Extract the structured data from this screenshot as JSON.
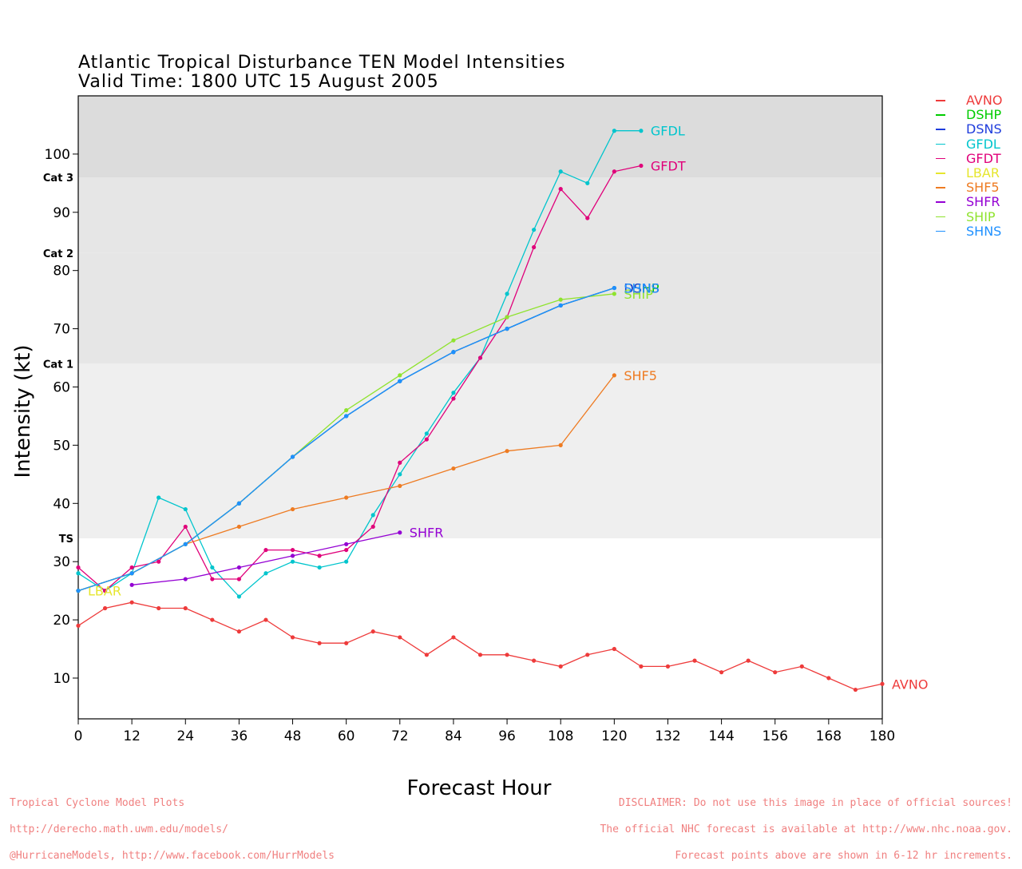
{
  "header": {
    "title_line1": "Atlantic Tropical Disturbance TEN Model Intensities",
    "title_line2": "Valid Time: 1800 UTC 15 August 2005"
  },
  "footer": {
    "left_line1": "Tropical Cyclone Model Plots",
    "left_line2": "http://derecho.math.uwm.edu/models/",
    "left_line3": "@HurricaneModels, http://www.facebook.com/HurrModels",
    "right_line1": "DISCLAIMER: Do not use this image in place of official sources!",
    "right_line2": "The official NHC forecast is available at http://www.nhc.noaa.gov.",
    "right_line3": "Forecast points above are shown in 6-12 hr increments."
  },
  "chart_data": {
    "type": "line",
    "title": "Atlantic Tropical Disturbance TEN Model Intensities",
    "subtitle": "Valid Time: 1800 UTC 15 August 2005",
    "xlabel": "Forecast Hour",
    "ylabel": "Intensity (kt)",
    "xlim": [
      0,
      180
    ],
    "ylim": [
      3,
      110
    ],
    "xticks": [
      0,
      12,
      24,
      36,
      48,
      60,
      72,
      84,
      96,
      108,
      120,
      132,
      144,
      156,
      168,
      180
    ],
    "yticks": [
      10,
      20,
      30,
      40,
      50,
      60,
      70,
      80,
      90,
      100
    ],
    "legend_position": "right",
    "bands": [
      {
        "from": 34,
        "to": 64,
        "label": "TS",
        "color": "#efefef"
      },
      {
        "from": 64,
        "to": 83,
        "label": "Cat 1",
        "color": "#e6e6e6"
      },
      {
        "from": 83,
        "to": 96,
        "label": "Cat 2",
        "color": "#e6e6e6"
      },
      {
        "from": 96,
        "to": 110,
        "label": "Cat 3",
        "color": "#dcdcdc"
      }
    ],
    "band_colors": [
      "#efefef",
      "#e6e6e6",
      "#dcdcdc"
    ],
    "series": [
      {
        "name": "AVNO",
        "color": "#ee3b3b",
        "end_label": "AVNO",
        "x": [
          0,
          6,
          12,
          18,
          24,
          30,
          36,
          42,
          48,
          54,
          60,
          66,
          72,
          78,
          84,
          90,
          96,
          102,
          108,
          114,
          120,
          126,
          132,
          138,
          144,
          150,
          156,
          162,
          168,
          174,
          180
        ],
        "y": [
          19,
          22,
          23,
          22,
          22,
          20,
          18,
          20,
          17,
          16,
          16,
          18,
          17,
          14,
          17,
          14,
          14,
          13,
          12,
          14,
          15,
          12,
          12,
          13,
          11,
          13,
          11,
          12,
          10,
          8,
          9
        ]
      },
      {
        "name": "DSHP",
        "color": "#00cc00",
        "end_label": "DSHP",
        "x": [
          0,
          12,
          24,
          36,
          48,
          60,
          72,
          84,
          96,
          108,
          120
        ],
        "y": [
          25,
          28,
          33,
          40,
          48,
          55,
          61,
          66,
          70,
          74,
          77
        ]
      },
      {
        "name": "DSNS",
        "color": "#1e3cdc",
        "end_label": "DSNS",
        "x": [
          0,
          12,
          24,
          36,
          48,
          60,
          72,
          84,
          96,
          108,
          120
        ],
        "y": [
          25,
          28,
          33,
          40,
          48,
          55,
          61,
          66,
          70,
          74,
          77
        ]
      },
      {
        "name": "GFDL",
        "color": "#00c5cd",
        "end_label": "GFDL",
        "x": [
          0,
          6,
          12,
          18,
          24,
          30,
          36,
          42,
          48,
          54,
          60,
          66,
          72,
          78,
          84,
          90,
          96,
          102,
          108,
          114,
          120,
          126
        ],
        "y": [
          28,
          25,
          28,
          41,
          39,
          29,
          24,
          28,
          30,
          29,
          30,
          38,
          45,
          52,
          59,
          65,
          76,
          87,
          97,
          95,
          104,
          104
        ]
      },
      {
        "name": "GFDT",
        "color": "#e0007a",
        "end_label": "GFDT",
        "x": [
          0,
          6,
          12,
          18,
          24,
          30,
          36,
          42,
          48,
          54,
          60,
          66,
          72,
          78,
          84,
          90,
          96,
          102,
          108,
          114,
          120,
          126
        ],
        "y": [
          29,
          25,
          29,
          30,
          36,
          27,
          27,
          32,
          32,
          31,
          32,
          36,
          47,
          51,
          58,
          65,
          72,
          84,
          94,
          89,
          97,
          98
        ]
      },
      {
        "name": "LBAR",
        "color": "#e6e62e",
        "end_label": "LBAR",
        "x": [
          0
        ],
        "y": [
          25
        ]
      },
      {
        "name": "SHF5",
        "color": "#ee7b22",
        "end_label": "SHF5",
        "x": [
          0,
          12,
          24,
          36,
          48,
          60,
          72,
          84,
          96,
          108,
          120
        ],
        "y": [
          25,
          28,
          33,
          36,
          39,
          41,
          43,
          46,
          49,
          50,
          62
        ]
      },
      {
        "name": "SHFR",
        "color": "#9400d3",
        "end_label": "SHFR",
        "x": [
          12,
          24,
          36,
          48,
          60,
          72
        ],
        "y": [
          26,
          27,
          29,
          31,
          33,
          35
        ]
      },
      {
        "name": "SHIP",
        "color": "#8fe32e",
        "end_label": "SHIP",
        "x": [
          0,
          12,
          24,
          36,
          48,
          60,
          72,
          84,
          96,
          108,
          120
        ],
        "y": [
          25,
          28,
          33,
          40,
          48,
          56,
          62,
          68,
          72,
          75,
          76
        ]
      },
      {
        "name": "SHNS",
        "color": "#1e90ff",
        "end_label": "SHNS",
        "x": [
          0,
          12,
          24,
          36,
          48,
          60,
          72,
          84,
          96,
          108,
          120
        ],
        "y": [
          25,
          28,
          33,
          40,
          48,
          55,
          61,
          66,
          70,
          74,
          77
        ]
      }
    ]
  }
}
